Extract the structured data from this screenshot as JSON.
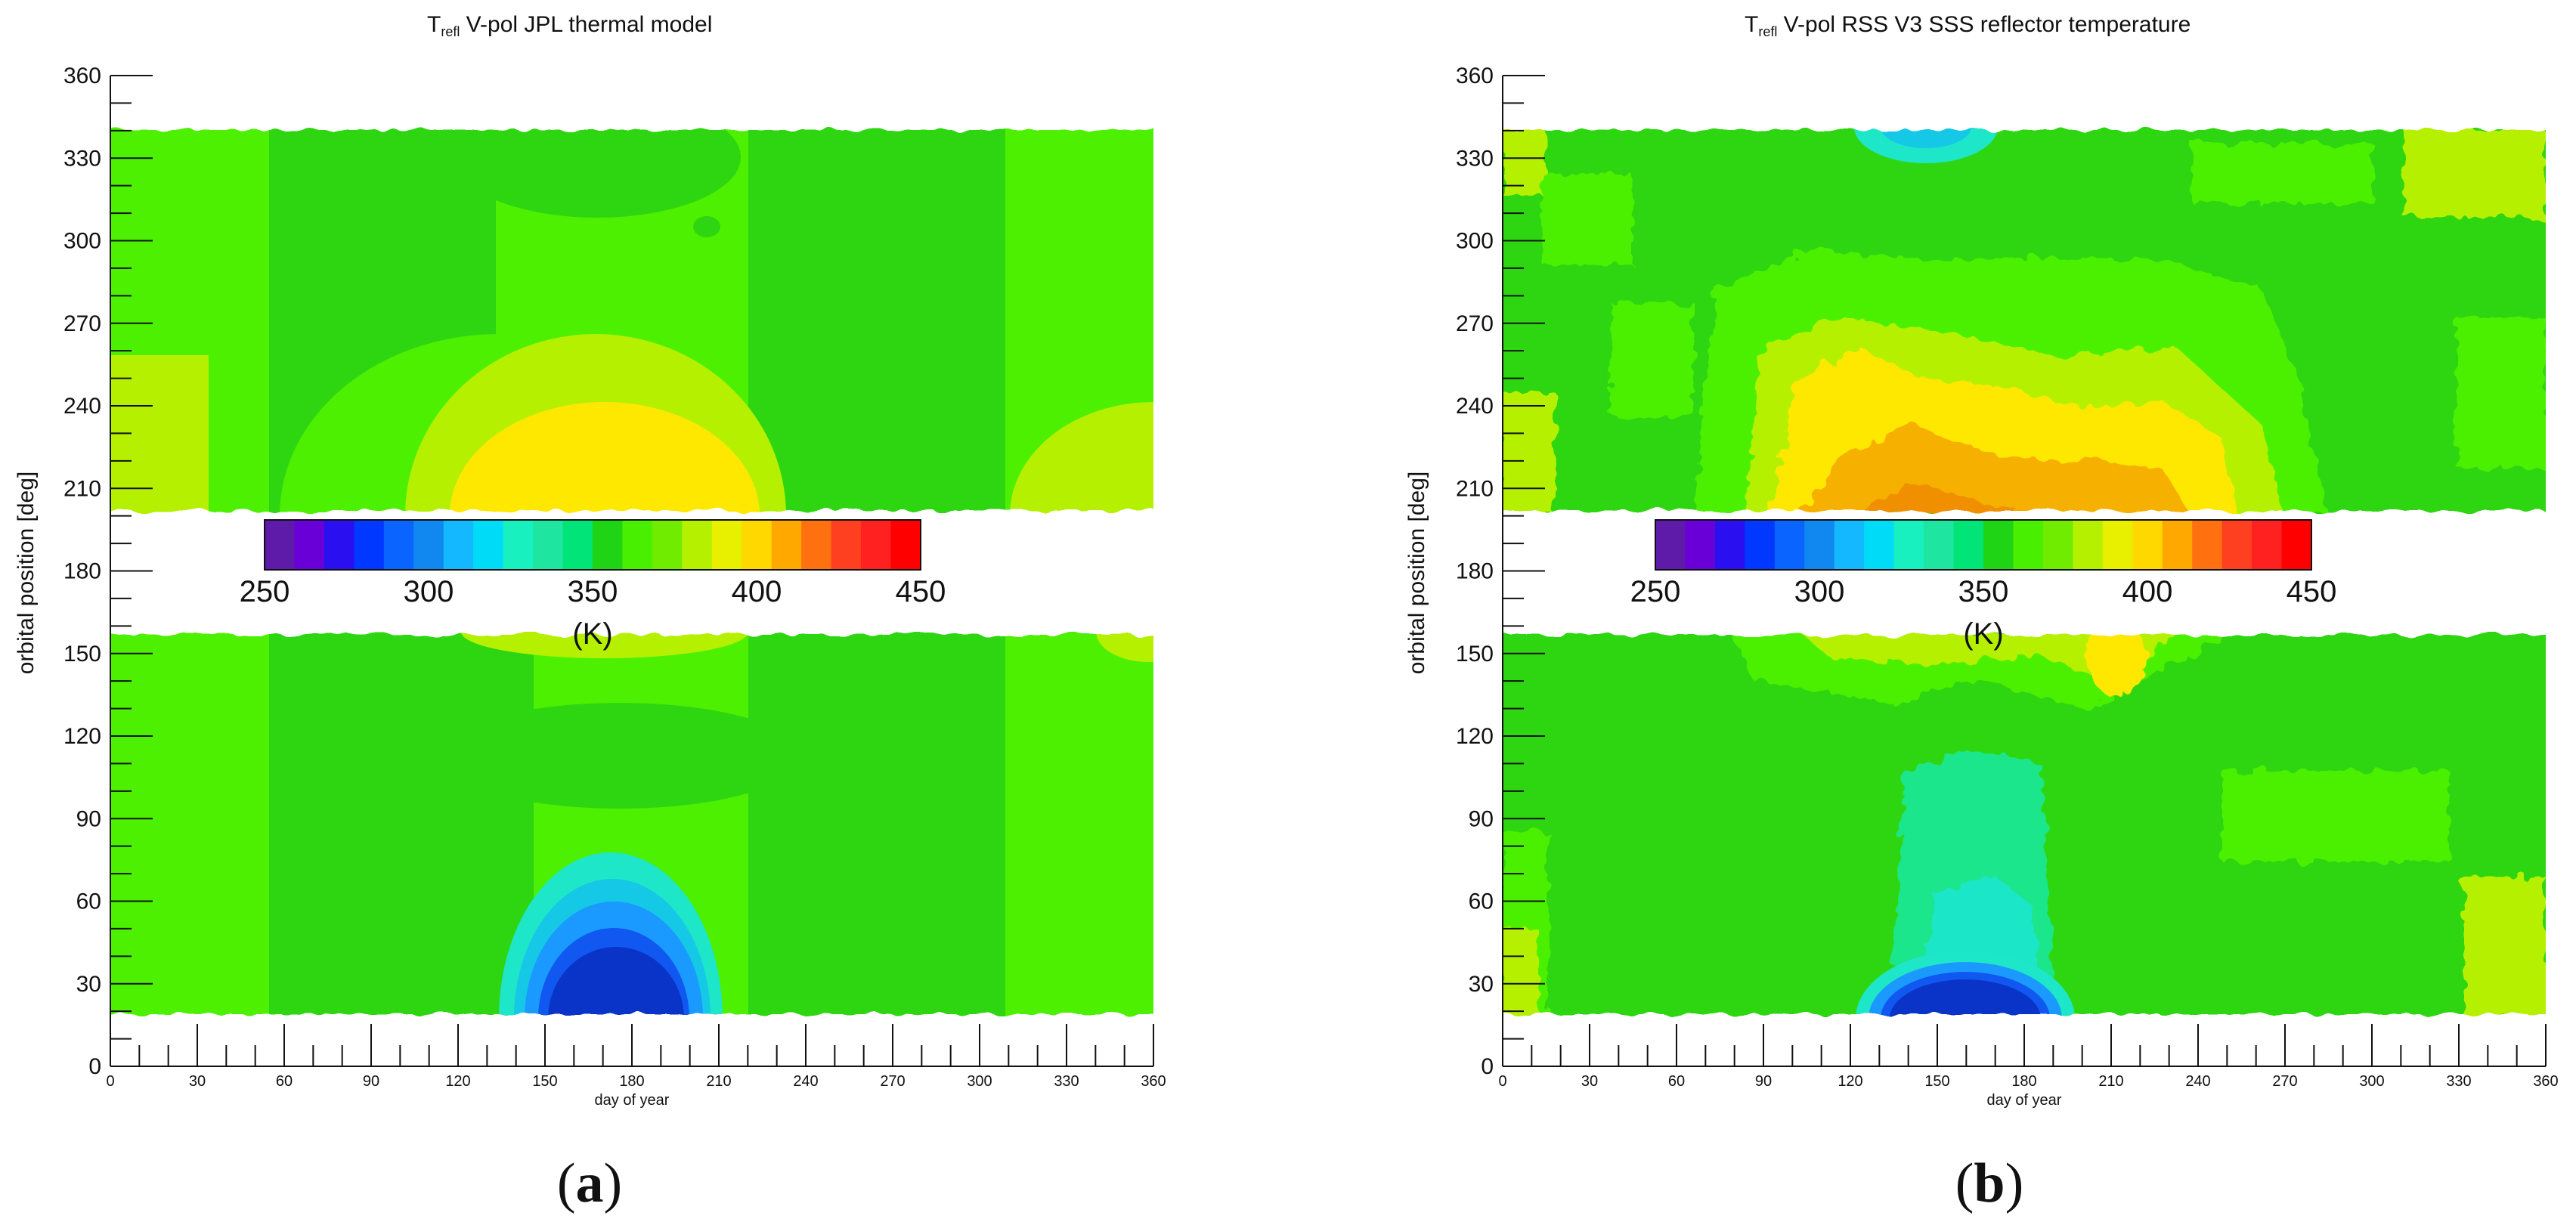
{
  "colors": {
    "green": "#2ed612",
    "lime": "#4cf000",
    "yellow_green": "#b4f000",
    "yellow": "#ffe800",
    "orange": "#f5b000",
    "deep_orange": "#f09000",
    "cyan": "#1ee6c8",
    "light_blue": "#1a9aff",
    "blue": "#1058f0",
    "dark_blue": "#0a34c8"
  },
  "colorbar_colors": [
    "#5e1aa8",
    "#6a00d8",
    "#2a10f0",
    "#0038ff",
    "#0a64ff",
    "#1088f0",
    "#14b8ff",
    "#00dcf8",
    "#18f0c0",
    "#1ee6a0",
    "#00e478",
    "#1ed414",
    "#48f000",
    "#70ec00",
    "#b4f000",
    "#e8f000",
    "#ffd800",
    "#ffa800",
    "#ff7010",
    "#ff4020",
    "#ff2020",
    "#ff0000"
  ],
  "chart_data": [
    {
      "type": "heatmap",
      "panel_label": "(a)",
      "title_main": "T",
      "title_sub": "refl",
      "title_rest": " V-pol   JPL thermal model",
      "xlabel": "day of year",
      "ylabel": "orbital position [deg]",
      "xlim": [
        0,
        360
      ],
      "ylim": [
        0,
        360
      ],
      "x_ticks": [
        "0",
        "30",
        "60",
        "90",
        "120",
        "150",
        "180",
        "210",
        "240",
        "270",
        "300",
        "330",
        "360"
      ],
      "y_ticks": [
        "0",
        "30",
        "60",
        "90",
        "120",
        "150",
        "180",
        "210",
        "240",
        "270",
        "300",
        "330",
        "360"
      ],
      "colorbar": {
        "range": [
          250,
          450
        ],
        "ticks": [
          "250",
          "300",
          "350",
          "400",
          "450"
        ],
        "unit": "(K)"
      },
      "data_y_ranges": [
        [
          18,
          158
        ],
        [
          200,
          340
        ]
      ]
    },
    {
      "type": "heatmap",
      "panel_label": "(b)",
      "title_main": "T",
      "title_sub": "refl",
      "title_rest": " V-pol   RSS V3 SSS reflector temperature",
      "xlabel": "day of year",
      "ylabel": "orbital position [deg]",
      "xlim": [
        0,
        360
      ],
      "ylim": [
        0,
        360
      ],
      "x_ticks": [
        "0",
        "30",
        "60",
        "90",
        "120",
        "150",
        "180",
        "210",
        "240",
        "270",
        "300",
        "330",
        "360"
      ],
      "y_ticks": [
        "0",
        "30",
        "60",
        "90",
        "120",
        "150",
        "180",
        "210",
        "240",
        "270",
        "300",
        "330",
        "360"
      ],
      "colorbar": {
        "range": [
          250,
          450
        ],
        "ticks": [
          "250",
          "300",
          "350",
          "400",
          "450"
        ],
        "unit": "(K)"
      },
      "data_y_ranges": [
        [
          18,
          158
        ],
        [
          200,
          340
        ]
      ]
    }
  ]
}
